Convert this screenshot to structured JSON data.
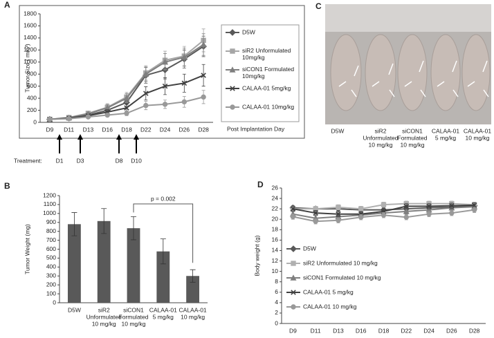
{
  "panels": [
    "A",
    "B",
    "C",
    "D"
  ],
  "photo": {
    "labels": [
      [
        "D5W"
      ],
      [
        "siR2",
        "Unformulated",
        "10 mg/kg"
      ],
      [
        "siCON1",
        "Formulated",
        "10 mg/kg"
      ],
      [
        "CALAA-01",
        "5 mg/kg"
      ],
      [
        "CALAA-01",
        "10 mg/kg"
      ]
    ]
  },
  "treatment": {
    "label": "Treatment:",
    "days": [
      "D1",
      "D3",
      "D8",
      "D10"
    ]
  },
  "chart_data": [
    {
      "type": "line",
      "y_label": "Tumor Size ( mm³)",
      "x_label": "Post Implantation  Day",
      "categories": [
        "D9",
        "D11",
        "D13",
        "D16",
        "D18",
        "D22",
        "D24",
        "D26",
        "D28"
      ],
      "ylim": [
        0,
        1800
      ],
      "yticks": [
        0,
        200,
        400,
        600,
        800,
        1000,
        1200,
        1400,
        1600,
        1800
      ],
      "legend": "right",
      "series": [
        {
          "name": "D5W",
          "color": "#595959",
          "marker": "diamond",
          "values": [
            50,
            70,
            120,
            200,
            330,
            780,
            870,
            1050,
            1260
          ],
          "errors": [
            10,
            15,
            25,
            50,
            70,
            130,
            150,
            150,
            170
          ]
        },
        {
          "name": "siR2 Unformulated 10mg/kg",
          "color": "#a6a6a6",
          "marker": "square",
          "values": [
            50,
            80,
            150,
            250,
            420,
            820,
            1030,
            1100,
            1360
          ],
          "errors": [
            10,
            15,
            30,
            60,
            80,
            120,
            150,
            160,
            190
          ]
        },
        {
          "name": "siCON1 Formulated 10mg/kg",
          "color": "#7f7f7f",
          "marker": "triangle",
          "values": [
            50,
            75,
            140,
            240,
            400,
            800,
            1000,
            1080,
            1290
          ],
          "errors": [
            10,
            15,
            30,
            55,
            75,
            120,
            140,
            150,
            180
          ]
        },
        {
          "name": "CALAA-01 5mg/kg",
          "color": "#404040",
          "marker": "x",
          "values": [
            50,
            70,
            110,
            170,
            240,
            480,
            600,
            650,
            780
          ],
          "errors": [
            10,
            12,
            20,
            40,
            60,
            110,
            140,
            150,
            180
          ]
        },
        {
          "name": "CALAA-01 10mg/kg",
          "color": "#999999",
          "marker": "circle",
          "values": [
            50,
            60,
            90,
            120,
            150,
            280,
            300,
            340,
            420
          ],
          "errors": [
            8,
            10,
            15,
            25,
            40,
            70,
            70,
            90,
            110
          ]
        }
      ]
    },
    {
      "type": "bar",
      "y_label": "Tumor Weight (mg)",
      "categories": [
        [
          "D5W"
        ],
        [
          "siR2",
          "Unformulated",
          "10 mg/kg"
        ],
        [
          "siCON1",
          "Formulated",
          "10 mg/kg"
        ],
        [
          "CALAA-01",
          "5 mg/kg"
        ],
        [
          "CALAA-01",
          "10 mg/kg"
        ]
      ],
      "values": [
        880,
        915,
        835,
        575,
        300
      ],
      "errors": [
        130,
        140,
        130,
        140,
        70
      ],
      "color": "#595959",
      "annotation": "p = 0.002",
      "ylim": [
        0,
        1200
      ],
      "yticks": [
        0,
        100,
        200,
        300,
        400,
        500,
        600,
        700,
        800,
        900,
        1000,
        1100,
        1200
      ]
    },
    {
      "type": "line",
      "y_label": "Body weight (g)",
      "categories": [
        "D9",
        "D11",
        "D13",
        "D16",
        "D18",
        "D22",
        "D24",
        "D26",
        "D28"
      ],
      "ylim": [
        0,
        26
      ],
      "yticks": [
        0,
        2,
        4,
        6,
        8,
        10,
        12,
        14,
        16,
        18,
        20,
        22,
        24,
        26
      ],
      "legend": "inside-left",
      "series": [
        {
          "name": "D5W",
          "color": "#595959",
          "marker": "diamond",
          "values": [
            22.2,
            22.0,
            22.0,
            21.8,
            21.8,
            22.0,
            22.2,
            22.3,
            22.6
          ],
          "errors": [
            0.4,
            0.4,
            0.4,
            0.4,
            0.4,
            0.4,
            0.4,
            0.4,
            0.4
          ]
        },
        {
          "name": "siR2 Unformulated 10 mg/kg",
          "color": "#b0b0b0",
          "marker": "square",
          "values": [
            22.0,
            22.0,
            22.3,
            22.0,
            22.8,
            23.0,
            23.0,
            23.0,
            22.8
          ],
          "errors": [
            0.5,
            0.5,
            0.5,
            0.5,
            0.5,
            0.5,
            0.5,
            0.5,
            0.5
          ]
        },
        {
          "name": "siCON1 Formulated 10 mg/kg",
          "color": "#7f7f7f",
          "marker": "triangle",
          "values": [
            21.0,
            20.2,
            20.5,
            20.8,
            21.2,
            21.5,
            21.8,
            22.2,
            22.4
          ],
          "errors": [
            0.5,
            0.5,
            0.5,
            0.5,
            0.5,
            0.5,
            0.5,
            0.5,
            0.5
          ]
        },
        {
          "name": "CALAA-01 5 mg/kg",
          "color": "#404040",
          "marker": "x",
          "values": [
            22.0,
            21.2,
            21.0,
            21.0,
            21.5,
            22.5,
            22.5,
            22.6,
            22.7
          ],
          "errors": [
            0.5,
            0.5,
            0.5,
            0.5,
            0.5,
            0.5,
            0.5,
            0.5,
            0.5
          ]
        },
        {
          "name": "CALAA-01 10 mg/kg",
          "color": "#999999",
          "marker": "circle",
          "values": [
            20.5,
            19.6,
            19.8,
            20.4,
            20.8,
            20.4,
            21.0,
            21.2,
            21.8
          ],
          "errors": [
            0.5,
            0.5,
            0.5,
            0.5,
            0.5,
            0.5,
            0.5,
            0.5,
            0.5
          ]
        }
      ]
    }
  ]
}
